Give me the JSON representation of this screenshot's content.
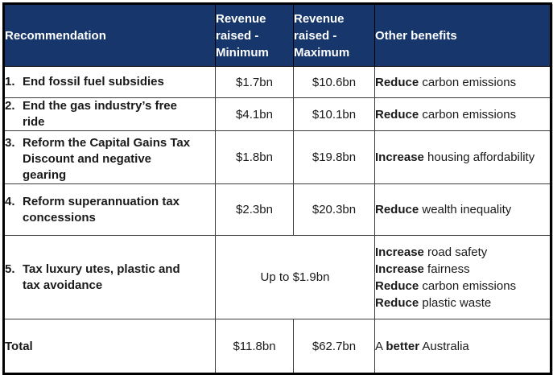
{
  "colors": {
    "header_bg": "#17376C",
    "header_text": "#FFFFFF",
    "border": "#000000",
    "body_text": "#1A1A1A"
  },
  "table": {
    "headers": [
      "Recommendation",
      "Revenue raised - Minimum",
      "Revenue raised - Maximum",
      "Other benefits"
    ],
    "rows": [
      {
        "num": "1.",
        "title": "End fossil fuel subsidies",
        "min": "$1.7bn",
        "max": "$10.6bn",
        "benefits": [
          [
            {
              "t": "Reduce",
              "b": true
            },
            {
              "t": " carbon emissions"
            }
          ]
        ]
      },
      {
        "num": "2.",
        "title": "End the gas industry’s free ride",
        "min": "$4.1bn",
        "max": "$10.1bn",
        "benefits": [
          [
            {
              "t": "Reduce",
              "b": true
            },
            {
              "t": " carbon emissions"
            }
          ]
        ]
      },
      {
        "num": "3.",
        "title": "Reform the Capital Gains Tax Discount and negative gearing",
        "min": "$1.8bn",
        "max": "$19.8bn",
        "benefits": [
          [
            {
              "t": "Increase",
              "b": true
            },
            {
              "t": " housing affordability"
            }
          ]
        ]
      },
      {
        "num": "4.",
        "title": "Reform superannuation tax concessions",
        "min": "$2.3bn",
        "max": "$20.3bn",
        "benefits": [
          [
            {
              "t": "Reduce",
              "b": true
            },
            {
              "t": " wealth inequality"
            }
          ]
        ]
      },
      {
        "num": "5.",
        "title": "Tax luxury utes, plastic and tax avoidance",
        "merged": "Up to $1.9bn",
        "benefits": [
          [
            {
              "t": "Increase",
              "b": true
            },
            {
              "t": " road safety"
            }
          ],
          [
            {
              "t": "Increase",
              "b": true
            },
            {
              "t": " fairness"
            }
          ],
          [
            {
              "t": "Reduce",
              "b": true
            },
            {
              "t": " carbon emissions"
            }
          ],
          [
            {
              "t": "Reduce",
              "b": true
            },
            {
              "t": " plastic waste"
            }
          ]
        ]
      }
    ],
    "total": {
      "label": "Total",
      "min": "$11.8bn",
      "max": "$62.7bn",
      "benefit": [
        {
          "t": "A "
        },
        {
          "t": "better",
          "b": true
        },
        {
          "t": " Australia"
        }
      ]
    }
  }
}
